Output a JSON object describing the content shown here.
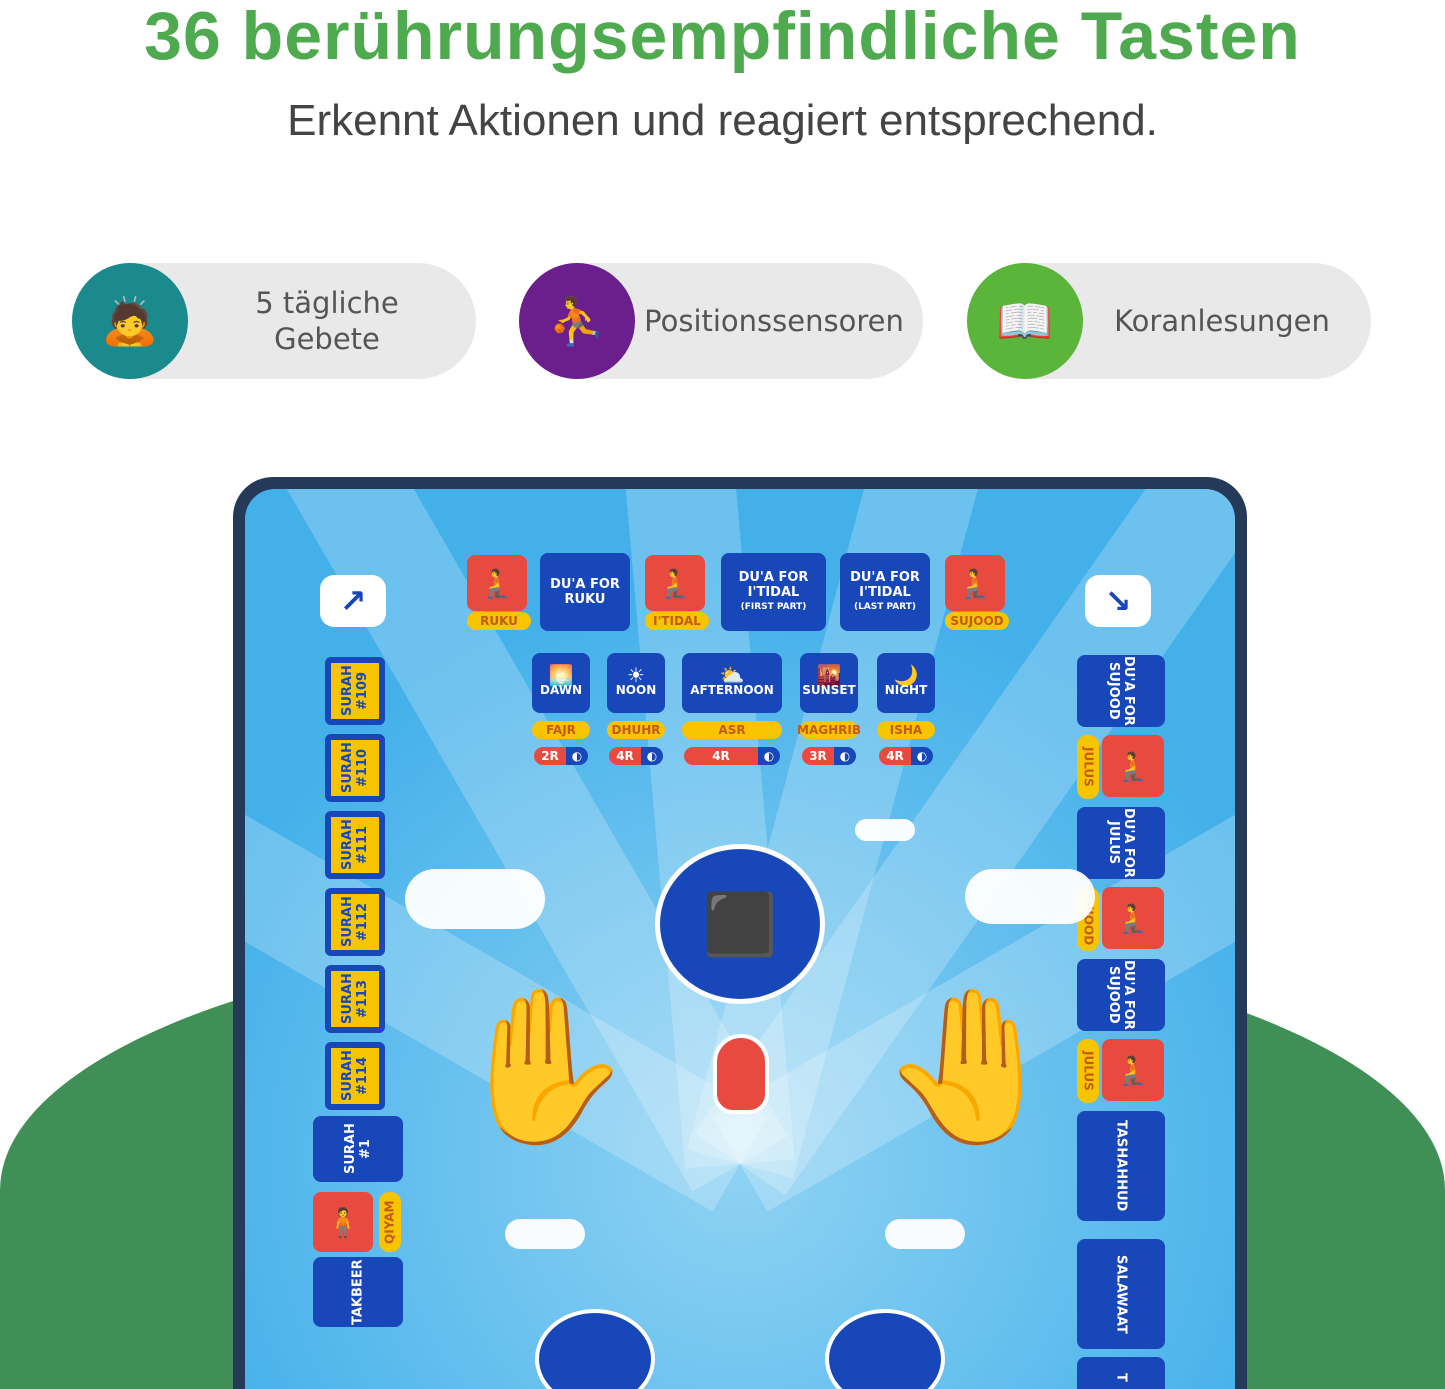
{
  "header": {
    "title": "36 berührungsempfindliche Tasten",
    "subtitle": "Erkennt Aktionen und reagiert entsprechend."
  },
  "features": [
    {
      "label": "5 tägliche Gebete",
      "icon": "prostration-icon",
      "color": "#1a8a8c"
    },
    {
      "label": "Positionssensoren",
      "icon": "bowing-figure-icon",
      "color": "#6a1f8c"
    },
    {
      "label": "Koranlesungen",
      "icon": "open-quran-icon",
      "color": "#5bb53a"
    }
  ],
  "mat": {
    "top_row": [
      {
        "text": "",
        "caption": "RUKU"
      },
      {
        "text": "DU'A FOR RUKU"
      },
      {
        "text": "",
        "caption": "I'TIDAL"
      },
      {
        "text": "DU'A FOR I'TIDAL",
        "small": "(FIRST PART)"
      },
      {
        "text": "DU'A FOR I'TIDAL",
        "small": "(LAST PART)"
      },
      {
        "text": "",
        "caption": "SUJOOD"
      }
    ],
    "prayers": [
      {
        "time": "DAWN",
        "name": "FAJR",
        "rakat": "2R"
      },
      {
        "time": "NOON",
        "name": "DHUHR",
        "rakat": "4R"
      },
      {
        "time": "AFTERNOON",
        "name": "ASR",
        "rakat": "4R"
      },
      {
        "time": "SUNSET",
        "name": "MAGHRIB",
        "rakat": "3R"
      },
      {
        "time": "NIGHT",
        "name": "ISHA",
        "rakat": "4R"
      }
    ],
    "left_column": [
      "SURAH #109",
      "SURAH #110",
      "SURAH #111",
      "SURAH #112",
      "SURAH #113",
      "SURAH #114",
      "SURAH #1",
      "QIYAM",
      "TAKBEER"
    ],
    "right_column": [
      "DU'A FOR SUJOOD",
      "JULUS",
      "DU'A FOR JULUS",
      "SUJOOD",
      "DU'A FOR SUJOOD",
      "JULUS",
      "TASHAHHUD",
      "SALAWAAT",
      "T"
    ],
    "colors": {
      "tile_blue": "#1747b8",
      "tile_red": "#e84a3f",
      "caption_yellow": "#f7c400"
    }
  }
}
